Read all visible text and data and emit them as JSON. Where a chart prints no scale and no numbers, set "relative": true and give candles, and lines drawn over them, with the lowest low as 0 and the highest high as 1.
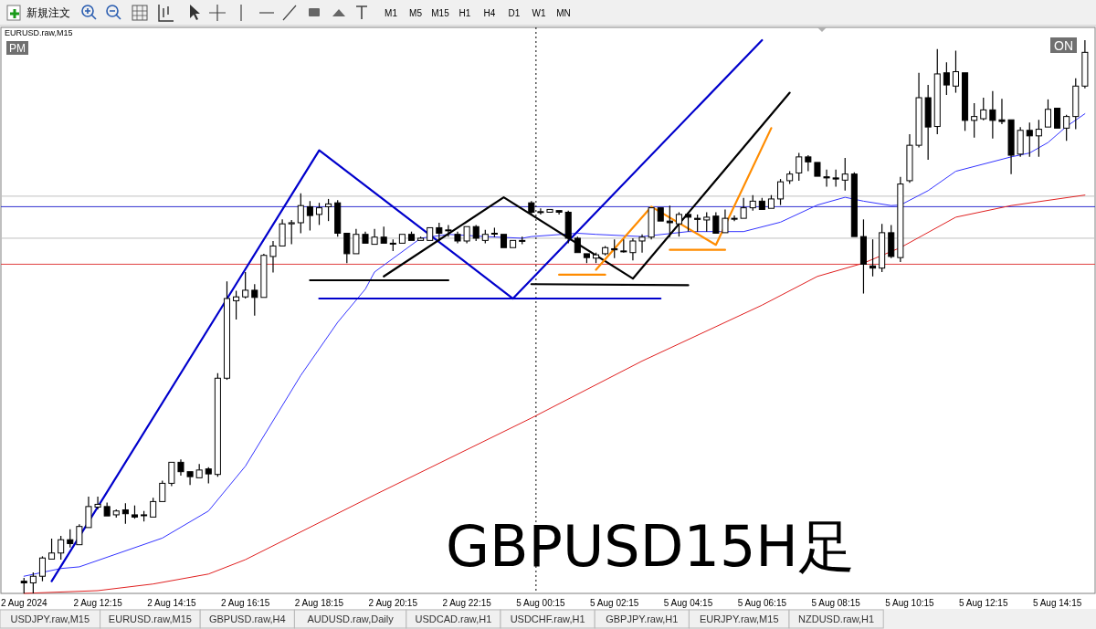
{
  "chart_data": {
    "type": "candlestick",
    "title": "EURUSD.raw,M15",
    "relative": true,
    "color": "#000000",
    "categories": [
      "2 Aug 2024",
      null,
      null,
      null,
      null,
      null,
      null,
      null,
      "2 Aug 12:15",
      null,
      null,
      null,
      null,
      null,
      null,
      null,
      "2 Aug 14:15",
      null,
      null,
      null,
      null,
      null,
      null,
      null,
      "2 Aug 16:15",
      null,
      null,
      null,
      null,
      null,
      null,
      null,
      "2 Aug 18:15",
      null,
      null,
      null,
      null,
      null,
      null,
      null,
      "2 Aug 20:15",
      null,
      null,
      null,
      null,
      null,
      null,
      null,
      "2 Aug 22:15",
      null,
      null,
      null,
      null,
      null,
      null,
      null,
      "5 Aug 00:15",
      null,
      null,
      null,
      null,
      null,
      null,
      null,
      "5 Aug 02:15",
      null,
      null,
      null,
      null,
      null,
      null,
      null,
      "5 Aug 04:15",
      null,
      null,
      null,
      null,
      null,
      null,
      null,
      "5 Aug 06:15",
      null,
      null,
      null,
      null,
      null,
      null,
      null,
      "5 Aug 08:15",
      null,
      null,
      null,
      null,
      null,
      null,
      null,
      "5 Aug 10:15",
      null,
      null,
      null,
      null,
      null,
      null,
      null,
      "5 Aug 12:15",
      null,
      null,
      null,
      null,
      null,
      null,
      null,
      "5 Aug 14:15",
      null,
      null,
      null
    ],
    "ohlc": [
      [
        0.022,
        0.028,
        0,
        0.019
      ],
      [
        0.019,
        0.038,
        0,
        0.031
      ],
      [
        0.031,
        0.067,
        0.022,
        0.064
      ],
      [
        0.062,
        0.099,
        0.061,
        0.073
      ],
      [
        0.073,
        0.104,
        0.061,
        0.097
      ],
      [
        0.097,
        0.116,
        0.083,
        0.09
      ],
      [
        0.088,
        0.125,
        0.087,
        0.121
      ],
      [
        0.119,
        0.175,
        0.119,
        0.157
      ],
      [
        0.156,
        0.175,
        0.152,
        0.161
      ],
      [
        0.157,
        0.164,
        0.138,
        0.14
      ],
      [
        0.142,
        0.152,
        0.137,
        0.149
      ],
      [
        0.151,
        0.163,
        0.126,
        0.144
      ],
      [
        0.142,
        0.159,
        0.135,
        0.138
      ],
      [
        0.142,
        0.149,
        0.13,
        0.142
      ],
      [
        0.138,
        0.173,
        0.138,
        0.166
      ],
      [
        0.166,
        0.204,
        0.166,
        0.199
      ],
      [
        0.199,
        0.239,
        0.194,
        0.237
      ],
      [
        0.237,
        0.242,
        0.213,
        0.22
      ],
      [
        0.22,
        0.221,
        0.196,
        0.211
      ],
      [
        0.209,
        0.234,
        0.209,
        0.223
      ],
      [
        0.225,
        0.228,
        0.199,
        0.216
      ],
      [
        0.215,
        0.398,
        0.211,
        0.389
      ],
      [
        0.389,
        0.564,
        0.386,
        0.533
      ],
      [
        0.529,
        0.547,
        0.495,
        0.536
      ],
      [
        0.536,
        0.581,
        0.533,
        0.548
      ],
      [
        0.548,
        0.559,
        0.502,
        0.535
      ],
      [
        0.535,
        0.614,
        0.533,
        0.611
      ],
      [
        0.609,
        0.637,
        0.58,
        0.628
      ],
      [
        0.628,
        0.676,
        0.628,
        0.668
      ],
      [
        0.668,
        0.675,
        0.631,
        0.67
      ],
      [
        0.67,
        0.723,
        0.651,
        0.701
      ],
      [
        0.699,
        0.709,
        0.656,
        0.683
      ],
      [
        0.685,
        0.706,
        0.666,
        0.697
      ],
      [
        0.699,
        0.713,
        0.673,
        0.704
      ],
      [
        0.706,
        0.711,
        0.645,
        0.651
      ],
      [
        0.651,
        0.651,
        0.597,
        0.614
      ],
      [
        0.614,
        0.659,
        0.614,
        0.649
      ],
      [
        0.649,
        0.654,
        0.631,
        0.633
      ],
      [
        0.631,
        0.659,
        0.631,
        0.644
      ],
      [
        0.644,
        0.663,
        0.633,
        0.633
      ],
      [
        0.633,
        0.64,
        0.619,
        0.633
      ],
      [
        0.633,
        0.649,
        0.633,
        0.649
      ],
      [
        0.649,
        0.654,
        0.637,
        0.638
      ],
      [
        0.638,
        0.645,
        0.637,
        0.642
      ],
      [
        0.638,
        0.661,
        0.637,
        0.661
      ],
      [
        0.661,
        0.67,
        0.637,
        0.651
      ],
      [
        0.657,
        0.666,
        0.645,
        0.657
      ],
      [
        0.649,
        0.654,
        0.633,
        0.637
      ],
      [
        0.637,
        0.663,
        0.633,
        0.663
      ],
      [
        0.663,
        0.666,
        0.637,
        0.642
      ],
      [
        0.638,
        0.657,
        0.633,
        0.649
      ],
      [
        0.651,
        0.661,
        0.644,
        0.651
      ],
      [
        0.649,
        0.649,
        0.625,
        0.625
      ],
      [
        0.625,
        0.638,
        0.625,
        0.638
      ],
      [
        0.638,
        0.645,
        0.631,
        0.638
      ],
      [
        0.706,
        0.709,
        0.685,
        0.689
      ],
      [
        0.69,
        0.696,
        0.685,
        0.69
      ],
      [
        0.689,
        0.694,
        0.689,
        0.694
      ],
      [
        0.692,
        0.694,
        0.685,
        0.689
      ],
      [
        0.689,
        0.692,
        0.633,
        0.642
      ],
      [
        0.642,
        0.645,
        0.616,
        0.616
      ],
      [
        0.614,
        0.616,
        0.597,
        0.607
      ],
      [
        0.606,
        0.616,
        0.597,
        0.612
      ],
      [
        0.614,
        0.628,
        0.611,
        0.625
      ],
      [
        0.623,
        0.64,
        0.606,
        0.621
      ],
      [
        0.619,
        0.64,
        0.616,
        0.619
      ],
      [
        0.616,
        0.642,
        0.602,
        0.637
      ],
      [
        0.637,
        0.649,
        0.616,
        0.644
      ],
      [
        0.644,
        0.697,
        0.64,
        0.697
      ],
      [
        0.697,
        0.697,
        0.671,
        0.673
      ],
      [
        0.673,
        0.701,
        0.644,
        0.67
      ],
      [
        0.668,
        0.689,
        0.645,
        0.685
      ],
      [
        0.685,
        0.689,
        0.654,
        0.68
      ],
      [
        0.678,
        0.685,
        0.654,
        0.676
      ],
      [
        0.675,
        0.689,
        0.654,
        0.68
      ],
      [
        0.682,
        0.689,
        0.651,
        0.651
      ],
      [
        0.652,
        0.694,
        0.651,
        0.678
      ],
      [
        0.678,
        0.683,
        0.673,
        0.678
      ],
      [
        0.678,
        0.715,
        0.676,
        0.697
      ],
      [
        0.697,
        0.72,
        0.692,
        0.709
      ],
      [
        0.709,
        0.715,
        0.694,
        0.694
      ],
      [
        0.696,
        0.72,
        0.696,
        0.713
      ],
      [
        0.713,
        0.749,
        0.702,
        0.744
      ],
      [
        0.746,
        0.763,
        0.74,
        0.758
      ],
      [
        0.76,
        0.796,
        0.746,
        0.789
      ],
      [
        0.789,
        0.792,
        0.763,
        0.78
      ],
      [
        0.779,
        0.78,
        0.754,
        0.754
      ],
      [
        0.753,
        0.766,
        0.735,
        0.751
      ],
      [
        0.751,
        0.766,
        0.735,
        0.749
      ],
      [
        0.747,
        0.787,
        0.728,
        0.758
      ],
      [
        0.758,
        0.761,
        0.644,
        0.645
      ],
      [
        0.645,
        0.676,
        0.542,
        0.595
      ],
      [
        0.592,
        0.64,
        0.573,
        0.588
      ],
      [
        0.588,
        0.668,
        0.581,
        0.652
      ],
      [
        0.652,
        0.666,
        0.606,
        0.609
      ],
      [
        0.607,
        0.753,
        0.599,
        0.74
      ],
      [
        0.746,
        0.83,
        0.742,
        0.81
      ],
      [
        0.81,
        0.941,
        0.806,
        0.896
      ],
      [
        0.896,
        0.919,
        0.784,
        0.843
      ],
      [
        0.844,
        0.984,
        0.83,
        0.939
      ],
      [
        0.941,
        0.96,
        0.901,
        0.919
      ],
      [
        0.917,
        0.981,
        0.905,
        0.943
      ],
      [
        0.941,
        0.941,
        0.836,
        0.855
      ],
      [
        0.855,
        0.886,
        0.824,
        0.862
      ],
      [
        0.858,
        0.896,
        0.855,
        0.874
      ],
      [
        0.874,
        0.908,
        0.822,
        0.855
      ],
      [
        0.856,
        0.894,
        0.848,
        0.853
      ],
      [
        0.856,
        0.856,
        0.758,
        0.792
      ],
      [
        0.794,
        0.843,
        0.789,
        0.837
      ],
      [
        0.837,
        0.851,
        0.789,
        0.827
      ],
      [
        0.827,
        0.856,
        0.789,
        0.839
      ],
      [
        0.843,
        0.893,
        0.841,
        0.875
      ],
      [
        0.877,
        0.877,
        0.841,
        0.841
      ],
      [
        0.841,
        0.865,
        0.818,
        0.862
      ],
      [
        0.862,
        0.931,
        0.839,
        0.917
      ],
      [
        0.917,
        1,
        0.913,
        0.978
      ]
    ],
    "series": [
      {
        "type": "line",
        "color": "#3333ff",
        "values": [
          0.031,
          null,
          null,
          null,
          0.045,
          null,
          0.048,
          null,
          null,
          null,
          null,
          null,
          null,
          null,
          null,
          0.1,
          null,
          null,
          null,
          null,
          0.149,
          null,
          null,
          null,
          0.23,
          null,
          null,
          null,
          null,
          null,
          0.394,
          null,
          null,
          null,
          0.49,
          null,
          null,
          0.55,
          0.581,
          null,
          null,
          null,
          null,
          0.642,
          null,
          null,
          0.649,
          null,
          null,
          null,
          0.645,
          null,
          null,
          null,
          0.642,
          0.645,
          null,
          null,
          null,
          null,
          0.651,
          null,
          0.649,
          null,
          null,
          null,
          null,
          0.645,
          null,
          null,
          null,
          null,
          0.654,
          null,
          null,
          null,
          null,
          null,
          0.654,
          null,
          null,
          null,
          0.671,
          null,
          null,
          null,
          0.702,
          null,
          null,
          0.716,
          null,
          0.709,
          null,
          null,
          0.701,
          0.702,
          null,
          null,
          0.728,
          null,
          null,
          0.763,
          null,
          null,
          null,
          null,
          null,
          0.789,
          null,
          0.796,
          null,
          0.815,
          null,
          0.844,
          null,
          0.867
        ]
      },
      {
        "type": "line",
        "color": "#e02020",
        "values": [
          0,
          null,
          null,
          null,
          null,
          null,
          null,
          null,
          0.005,
          null,
          null,
          null,
          null,
          null,
          0.017,
          null,
          null,
          null,
          null,
          null,
          0.035,
          null,
          null,
          null,
          0.061,
          null,
          null,
          null,
          null,
          null,
          null,
          null,
          null,
          null,
          null,
          null,
          null,
          null,
          0.178,
          null,
          null,
          null,
          null,
          null,
          null,
          null,
          null,
          null,
          null,
          null,
          null,
          null,
          null,
          null,
          null,
          0.317,
          null,
          null,
          null,
          null,
          null,
          null,
          null,
          null,
          null,
          null,
          null,
          0.42,
          null,
          null,
          null,
          null,
          null,
          null,
          null,
          null,
          null,
          null,
          null,
          null,
          0.521,
          null,
          null,
          null,
          null,
          null,
          0.573,
          null,
          null,
          null,
          null,
          0.597,
          null,
          null,
          null,
          0.625,
          null,
          null,
          null,
          null,
          null,
          0.68,
          null,
          null,
          null,
          null,
          null,
          0.701,
          null,
          null,
          null,
          null,
          null,
          null,
          null,
          0.72
        ]
      },
      {
        "type": "line",
        "color": "#0000cc",
        "values": [
          null,
          null,
          null,
          0.022,
          null,
          null,
          null,
          null,
          null,
          null,
          null,
          null,
          null,
          null,
          null,
          null,
          null,
          null,
          null,
          null,
          null,
          null,
          null,
          null,
          null,
          null,
          null,
          null,
          null,
          null,
          null,
          null,
          0.801,
          null,
          null,
          null,
          null,
          null,
          null,
          null,
          null,
          null,
          null,
          null,
          null,
          null,
          null,
          null,
          null,
          null,
          null,
          null,
          null,
          0.533,
          null,
          null,
          null,
          null,
          null,
          null,
          null,
          null,
          null,
          null,
          null,
          null,
          null,
          null,
          null,
          null,
          null,
          null,
          null,
          null,
          null,
          null,
          null,
          null,
          null,
          null,
          1,
          null,
          null,
          null,
          null,
          null,
          null,
          null,
          null,
          null,
          null,
          null,
          null,
          null,
          null,
          null,
          null,
          null,
          null,
          null,
          null,
          null,
          null,
          null,
          null,
          null,
          null,
          null,
          null,
          null,
          null,
          null,
          null,
          null,
          null,
          null
        ]
      },
      {
        "type": "line",
        "color": "#000000",
        "values": [
          null,
          null,
          null,
          null,
          null,
          null,
          null,
          null,
          null,
          null,
          null,
          null,
          null,
          null,
          null,
          null,
          null,
          null,
          null,
          null,
          null,
          null,
          null,
          null,
          null,
          null,
          null,
          null,
          null,
          null,
          null,
          null,
          null,
          null,
          null,
          null,
          null,
          null,
          null,
          0.573,
          null,
          null,
          null,
          null,
          null,
          null,
          null,
          null,
          null,
          null,
          null,
          null,
          0.716,
          null,
          null,
          null,
          null,
          null,
          null,
          null,
          null,
          null,
          null,
          null,
          null,
          null,
          0.569,
          null,
          null,
          null,
          null,
          null,
          null,
          null,
          null,
          null,
          null,
          null,
          null,
          null,
          null,
          null,
          null,
          0.905,
          null,
          null,
          null,
          null,
          null,
          null,
          null,
          null,
          null,
          null,
          null,
          null,
          null,
          null,
          null,
          null,
          null,
          null,
          null,
          null,
          null,
          null,
          null,
          null,
          null,
          null,
          null,
          null,
          null,
          null,
          null,
          null
        ]
      },
      {
        "type": "line",
        "color": "#ff8c00",
        "values": [
          null,
          null,
          null,
          null,
          null,
          null,
          null,
          null,
          null,
          null,
          null,
          null,
          null,
          null,
          null,
          null,
          null,
          null,
          null,
          null,
          null,
          null,
          null,
          null,
          null,
          null,
          null,
          null,
          null,
          null,
          null,
          null,
          null,
          null,
          null,
          null,
          null,
          null,
          null,
          null,
          null,
          null,
          null,
          null,
          null,
          null,
          null,
          null,
          null,
          null,
          null,
          null,
          null,
          null,
          null,
          null,
          null,
          null,
          null,
          null,
          null,
          null,
          0.585,
          null,
          null,
          null,
          null,
          null,
          0.699,
          null,
          null,
          null,
          null,
          null,
          null,
          0.63,
          null,
          null,
          null,
          null,
          null,
          0.841,
          null,
          null,
          null,
          null,
          null,
          null,
          null,
          null,
          null,
          null,
          null,
          null,
          null,
          null,
          null,
          null,
          null,
          null,
          null,
          null,
          null,
          null,
          null,
          null,
          null,
          null,
          null,
          null,
          null,
          null,
          null,
          null,
          null,
          null
        ]
      },
      {
        "type": "line",
        "color": "#000000",
        "values": [
          null,
          null,
          null,
          null,
          null,
          null,
          null,
          null,
          null,
          null,
          null,
          null,
          null,
          null,
          null,
          null,
          null,
          null,
          null,
          null,
          null,
          null,
          null,
          null,
          null,
          null,
          null,
          null,
          null,
          null,
          null,
          0.566,
          null,
          null,
          null,
          null,
          null,
          null,
          null,
          null,
          null,
          null,
          null,
          null,
          null,
          null,
          0.566,
          null,
          null,
          null,
          null,
          null,
          null,
          null,
          null,
          null,
          null,
          null,
          null,
          null,
          null,
          null,
          null,
          null,
          null,
          null,
          null,
          null,
          null,
          null,
          null,
          null,
          null,
          null,
          null,
          null,
          null,
          null,
          null,
          null,
          null,
          null,
          null,
          null,
          null,
          null,
          null,
          null,
          null,
          null,
          null,
          null,
          null,
          null,
          null,
          null,
          null,
          null,
          null,
          null,
          null,
          null,
          null,
          null,
          null,
          null,
          null,
          null,
          null,
          null,
          null,
          null,
          null,
          null,
          null,
          null
        ]
      },
      {
        "type": "line",
        "color": "#0000cc",
        "values": [
          null,
          null,
          null,
          null,
          null,
          null,
          null,
          null,
          null,
          null,
          null,
          null,
          null,
          null,
          null,
          null,
          null,
          null,
          null,
          null,
          null,
          null,
          null,
          null,
          null,
          null,
          null,
          null,
          null,
          null,
          null,
          null,
          0.533,
          null,
          null,
          null,
          null,
          null,
          null,
          null,
          null,
          null,
          null,
          null,
          null,
          null,
          null,
          null,
          null,
          null,
          null,
          null,
          null,
          null,
          null,
          null,
          null,
          null,
          null,
          null,
          null,
          null,
          null,
          null,
          null,
          null,
          null,
          null,
          null,
          0.533,
          null,
          null,
          null,
          null,
          null,
          null,
          null,
          null,
          null,
          null,
          null,
          null,
          null,
          null,
          null,
          null,
          null,
          null,
          null,
          null,
          null,
          null,
          null,
          null,
          null,
          null,
          null,
          null,
          null,
          null,
          null,
          null,
          null,
          null,
          null,
          null,
          null,
          null,
          null,
          null,
          null,
          null,
          null,
          null,
          null,
          null
        ]
      },
      {
        "type": "line",
        "color": "#000000",
        "values": [
          null,
          null,
          null,
          null,
          null,
          null,
          null,
          null,
          null,
          null,
          null,
          null,
          null,
          null,
          null,
          null,
          null,
          null,
          null,
          null,
          null,
          null,
          null,
          null,
          null,
          null,
          null,
          null,
          null,
          null,
          null,
          null,
          null,
          null,
          null,
          null,
          null,
          null,
          null,
          null,
          null,
          null,
          null,
          null,
          null,
          null,
          null,
          null,
          null,
          null,
          null,
          null,
          null,
          null,
          null,
          0.559,
          null,
          null,
          null,
          null,
          null,
          null,
          null,
          null,
          null,
          null,
          null,
          null,
          null,
          null,
          null,
          null,
          0.557,
          null,
          null,
          null,
          null,
          null,
          null,
          null,
          null,
          null,
          null,
          null,
          null,
          null,
          null,
          null,
          null,
          null,
          null,
          null,
          null,
          null,
          null,
          null,
          null,
          null,
          null,
          null,
          null,
          null,
          null,
          null,
          null,
          null,
          null,
          null,
          null,
          null,
          null,
          null,
          null,
          null,
          null,
          null
        ]
      },
      {
        "type": "line",
        "color": "#ff8c00",
        "values": [
          null,
          null,
          null,
          null,
          null,
          null,
          null,
          null,
          null,
          null,
          null,
          null,
          null,
          null,
          null,
          null,
          null,
          null,
          null,
          null,
          null,
          null,
          null,
          null,
          null,
          null,
          null,
          null,
          null,
          null,
          null,
          null,
          null,
          null,
          null,
          null,
          null,
          null,
          null,
          null,
          null,
          null,
          null,
          null,
          null,
          null,
          null,
          null,
          null,
          null,
          null,
          null,
          null,
          null,
          null,
          null,
          null,
          null,
          0.576,
          null,
          null,
          null,
          null,
          0.576,
          null,
          null,
          null,
          null,
          null,
          null,
          null,
          null,
          null,
          null,
          null,
          null,
          null,
          null,
          null,
          null,
          null,
          null,
          null,
          null,
          null,
          null,
          null,
          null,
          null,
          null,
          null,
          null,
          null,
          null,
          null,
          null,
          null,
          null,
          null,
          null,
          null,
          null,
          null,
          null,
          null,
          null,
          null,
          null,
          null,
          null,
          null,
          null,
          null,
          null,
          null,
          null
        ]
      },
      {
        "type": "line",
        "color": "#ff8c00",
        "values": [
          null,
          null,
          null,
          null,
          null,
          null,
          null,
          null,
          null,
          null,
          null,
          null,
          null,
          null,
          null,
          null,
          null,
          null,
          null,
          null,
          null,
          null,
          null,
          null,
          null,
          null,
          null,
          null,
          null,
          null,
          null,
          null,
          null,
          null,
          null,
          null,
          null,
          null,
          null,
          null,
          null,
          null,
          null,
          null,
          null,
          null,
          null,
          null,
          null,
          null,
          null,
          null,
          null,
          null,
          null,
          null,
          null,
          null,
          null,
          null,
          null,
          null,
          null,
          null,
          null,
          null,
          null,
          null,
          null,
          null,
          0.621,
          null,
          null,
          null,
          null,
          null,
          0.621,
          null,
          null,
          null,
          null,
          null,
          null,
          null,
          null,
          null,
          null,
          null,
          null,
          null,
          null,
          null,
          null,
          null,
          null,
          null,
          null,
          null,
          null,
          null,
          null,
          null,
          null,
          null,
          null,
          null,
          null,
          null,
          null,
          null,
          null,
          null,
          null,
          null,
          null,
          null
        ]
      }
    ],
    "ref_lines": [
      {
        "axis": "y",
        "value": 0.718,
        "color": "#c0c0c0"
      },
      {
        "axis": "y",
        "value": 0.699,
        "color": "#3030d0"
      },
      {
        "axis": "y",
        "value": 0.642,
        "color": "#c0c0c0"
      },
      {
        "axis": "y",
        "value": 0.595,
        "color": "#e04040"
      },
      {
        "axis": "x",
        "value": "5 Aug 00:15",
        "color": "#000000",
        "line_style": "dotted"
      }
    ],
    "annotations": [
      "GBPUSD15H足",
      "PM",
      "ON",
      "新規注文",
      "M1",
      "M5",
      "M15",
      "H1",
      "H4",
      "D1",
      "W1",
      "MN",
      "USDJPY.raw,M15",
      "EURUSD.raw,M15",
      "GBPUSD.raw,H4",
      "AUDUSD.raw,Daily",
      "USDCAD.raw,H1",
      "USDCHF.raw,H1",
      "GBPJPY.raw,H1",
      "EURJPY.raw,M15",
      "NZDUSD.raw,H1"
    ]
  }
}
